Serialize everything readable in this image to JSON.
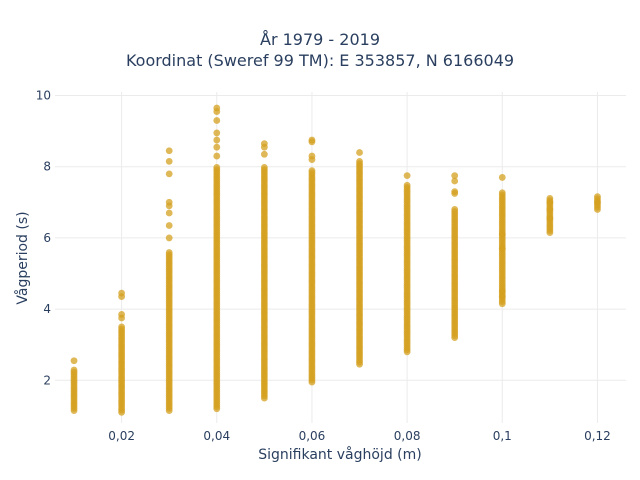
{
  "chart_data": {
    "type": "scatter",
    "title": "År 1979 - 2019",
    "subtitle": "Koordinat (Sweref 99 TM): E 353857, N 6166049",
    "xlabel": "Signifikant våghöjd (m)",
    "ylabel": "Vågperiod (s)",
    "xlim": [
      0.006,
      0.126
    ],
    "ylim": [
      0.8,
      10.1
    ],
    "xticks": [
      0.02,
      0.04,
      0.06,
      0.08,
      0.1,
      0.12
    ],
    "xtick_labels": [
      "0,02",
      "0,04",
      "0,06",
      "0,08",
      "0,1",
      "0,12"
    ],
    "yticks": [
      2,
      4,
      6,
      8,
      10
    ],
    "ytick_labels": [
      "2",
      "4",
      "6",
      "8",
      "10"
    ],
    "grid": true,
    "legend": "none",
    "marker_color": "#d4a020",
    "columns": [
      {
        "x": 0.01,
        "y_min": 1.15,
        "y_max": 2.3,
        "outliers": [
          2.55
        ]
      },
      {
        "x": 0.02,
        "y_min": 1.1,
        "y_max": 3.5,
        "outliers": [
          3.75,
          3.85,
          4.35,
          4.45
        ]
      },
      {
        "x": 0.03,
        "y_min": 1.15,
        "y_max": 5.6,
        "outliers": [
          6.0,
          6.35,
          6.7,
          6.9,
          7.0,
          7.8,
          8.15,
          8.45
        ]
      },
      {
        "x": 0.04,
        "y_min": 1.2,
        "y_max": 8.0,
        "outliers": [
          8.3,
          8.55,
          8.75,
          8.95,
          9.3,
          9.55,
          9.65
        ]
      },
      {
        "x": 0.05,
        "y_min": 1.5,
        "y_max": 8.0,
        "outliers": [
          8.35,
          8.55,
          8.65
        ]
      },
      {
        "x": 0.06,
        "y_min": 1.95,
        "y_max": 7.9,
        "outliers": [
          8.2,
          8.3,
          8.7,
          8.75
        ]
      },
      {
        "x": 0.07,
        "y_min": 2.45,
        "y_max": 8.2,
        "outliers": [
          8.4
        ]
      },
      {
        "x": 0.08,
        "y_min": 2.8,
        "y_max": 7.5,
        "outliers": [
          7.75
        ]
      },
      {
        "x": 0.09,
        "y_min": 3.2,
        "y_max": 6.85,
        "outliers": [
          7.25,
          7.3,
          7.6,
          7.75
        ]
      },
      {
        "x": 0.1,
        "y_min": 4.15,
        "y_max": 7.3,
        "outliers": [
          4.35,
          4.5,
          5.7,
          6.1,
          7.7
        ]
      },
      {
        "x": 0.11,
        "y_min": 6.15,
        "y_max": 7.15,
        "outliers": [
          6.55,
          6.8,
          7.0
        ]
      },
      {
        "x": 0.12,
        "y_min": 6.8,
        "y_max": 7.2,
        "outliers": [
          7.0
        ]
      }
    ]
  }
}
